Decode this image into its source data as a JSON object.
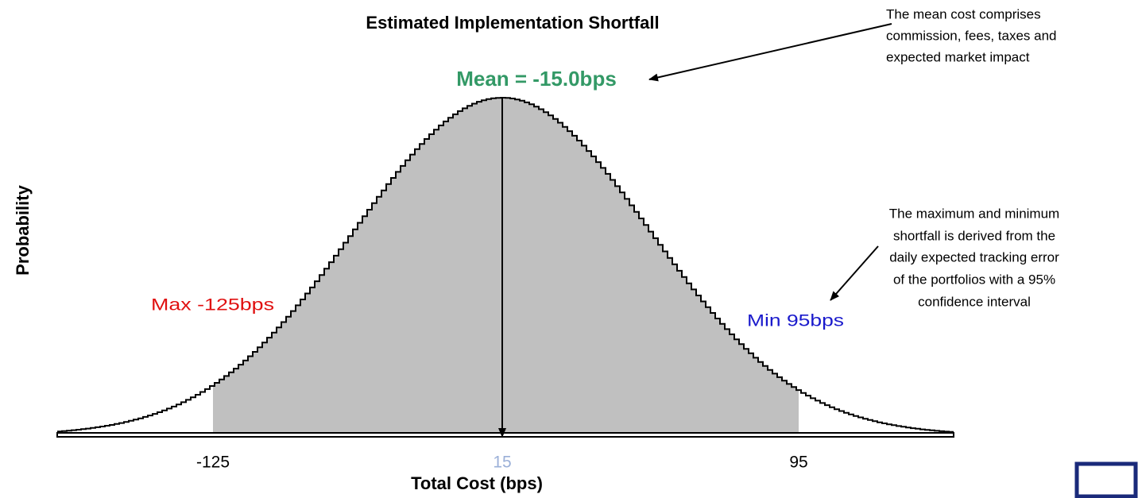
{
  "title": "Estimated Implementation Shortfall",
  "mean_label": "Mean = -15.0bps",
  "notes": {
    "mean": [
      "The mean cost comprises",
      "commission, fees, taxes and",
      "expected market impact"
    ],
    "range": [
      "The maximum and minimum",
      "shortfall is derived from the",
      "daily expected tracking error",
      "of the portfolios with a 95%",
      "confidence interval"
    ]
  },
  "max_label": "Max -125bps",
  "min_label": "Min 95bps",
  "y_axis_label": "Probability",
  "x_axis_label": "Total Cost (bps)",
  "x_ticks": [
    "-125",
    "15",
    "95"
  ]
}
